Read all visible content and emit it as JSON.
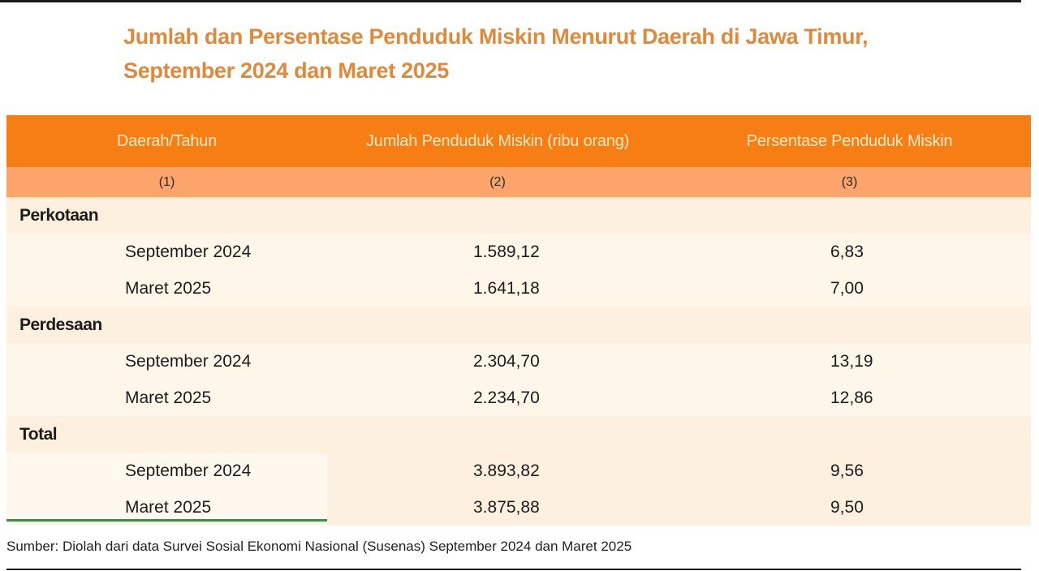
{
  "title": {
    "line1": "Jumlah dan Persentase Penduduk Miskin Menurut Daerah di Jawa Timur,",
    "line2": "September 2024 dan Maret 2025"
  },
  "table": {
    "headers": [
      "Daerah/Tahun",
      "Jumlah Penduduk Miskin (ribu orang)",
      "Persentase Penduduk Miskin"
    ],
    "column_numbers": [
      "(1)",
      "(2)",
      "(3)"
    ],
    "groups": [
      {
        "label": "Perkotaan",
        "rows": [
          {
            "period": "September 2024",
            "jumlah": "1.589,12",
            "persentase": "6,83"
          },
          {
            "period": "Maret 2025",
            "jumlah": "1.641,18",
            "persentase": "7,00"
          }
        ]
      },
      {
        "label": "Perdesaan",
        "rows": [
          {
            "period": "September 2024",
            "jumlah": "2.304,70",
            "persentase": "13,19"
          },
          {
            "period": "Maret 2025",
            "jumlah": "2.234,70",
            "persentase": "12,86"
          }
        ]
      },
      {
        "label": "Total",
        "rows": [
          {
            "period": "September 2024",
            "jumlah": "3.893,82",
            "persentase": "9,56"
          },
          {
            "period": "Maret 2025",
            "jumlah": "3.875,88",
            "persentase": "9,50"
          }
        ]
      }
    ]
  },
  "source": "Sumber: Diolah dari data Survei Sosial Ekonomi Nasional (Susenas) September 2024 dan Maret 2025",
  "colors": {
    "title": "#e0893a",
    "header_bg": "#f77e14",
    "subheader_bg": "#fca46a",
    "row_group_bg": "#fdf0df",
    "row_data_bg": "#fff6ea",
    "accent_line": "#3f8a4f"
  }
}
